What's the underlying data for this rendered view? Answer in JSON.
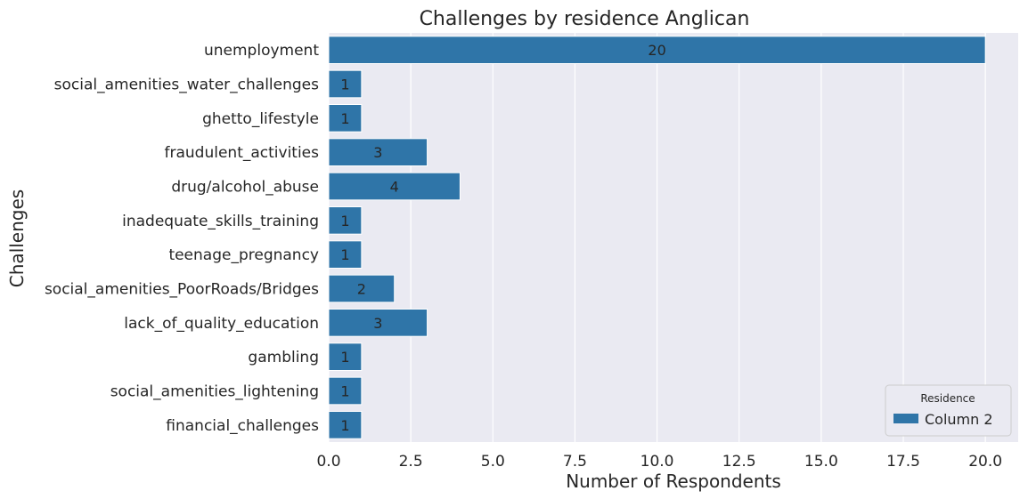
{
  "chart_data": {
    "type": "bar",
    "orientation": "horizontal",
    "title": "Challenges by residence Anglican",
    "xlabel": "Number of Respondents",
    "ylabel": "Challenges",
    "categories": [
      "unemployment",
      "social_amenities_water_challenges",
      "ghetto_lifestyle",
      "fraudulent_activities",
      "drug/alcohol_abuse",
      "inadequate_skills_training",
      "teenage_pregnancy",
      "social_amenities_PoorRoads/Bridges",
      "lack_of_quality_education",
      "gambling",
      "social_amenities_lightening",
      "financial_challenges"
    ],
    "series": [
      {
        "name": "Column 2",
        "values": [
          20,
          1,
          1,
          3,
          4,
          1,
          1,
          2,
          3,
          1,
          1,
          1
        ],
        "color": "#2f75a8"
      }
    ],
    "xlim": [
      0,
      21
    ],
    "xticks": [
      0,
      2.5,
      5,
      7.5,
      10,
      12.5,
      15,
      17.5,
      20
    ],
    "xtick_labels": [
      "0.0",
      "2.5",
      "5.0",
      "7.5",
      "10.0",
      "12.5",
      "15.0",
      "17.5",
      "20.0"
    ],
    "grid": true,
    "legend": {
      "title": "Residence",
      "position": "bottom-right"
    },
    "colors": {
      "plot_background": "#eaeaf2",
      "grid": "#ffffff",
      "bar": "#2f75a8"
    }
  }
}
